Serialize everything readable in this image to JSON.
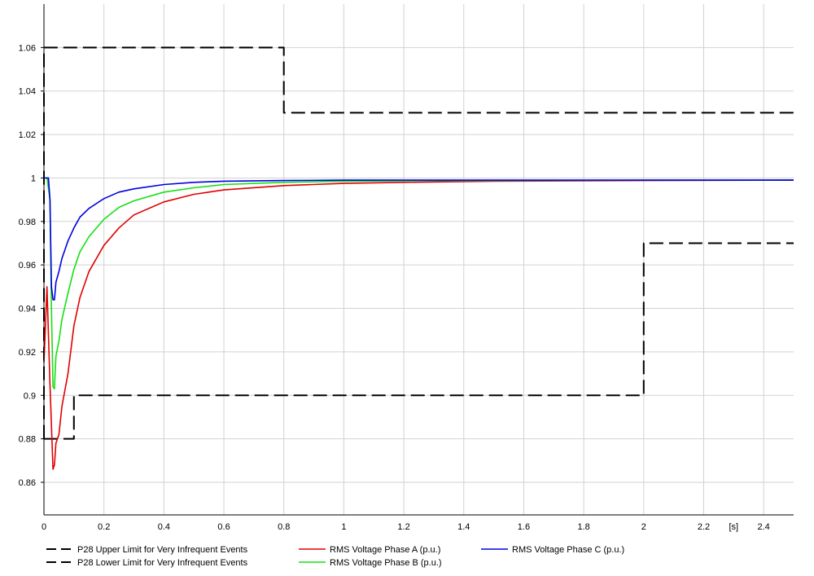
{
  "chart_data": {
    "type": "line",
    "title": "",
    "xlabel": "",
    "ylabel": "",
    "x_unit_label": "[s]",
    "xlim": [
      0,
      2.5
    ],
    "ylim": [
      0.845,
      1.08
    ],
    "grid": true,
    "legend_position": "bottom",
    "xticks": [
      {
        "v": 0,
        "label": "0"
      },
      {
        "v": 0.2,
        "label": "0.2"
      },
      {
        "v": 0.4,
        "label": "0.4"
      },
      {
        "v": 0.6,
        "label": "0.6"
      },
      {
        "v": 0.8,
        "label": "0.8"
      },
      {
        "v": 1,
        "label": "1"
      },
      {
        "v": 1.2,
        "label": "1.2"
      },
      {
        "v": 1.4,
        "label": "1.4"
      },
      {
        "v": 1.6,
        "label": "1.6"
      },
      {
        "v": 1.8,
        "label": "1.8"
      },
      {
        "v": 2,
        "label": "2"
      },
      {
        "v": 2.2,
        "label": "2.2"
      },
      {
        "v": 2.4,
        "label": "2.4"
      }
    ],
    "yticks": [
      {
        "v": 0.86,
        "label": "0.86"
      },
      {
        "v": 0.88,
        "label": "0.88"
      },
      {
        "v": 0.9,
        "label": "0.9"
      },
      {
        "v": 0.92,
        "label": "0.92"
      },
      {
        "v": 0.94,
        "label": "0.94"
      },
      {
        "v": 0.96,
        "label": "0.96"
      },
      {
        "v": 0.98,
        "label": "0.98"
      },
      {
        "v": 1,
        "label": "1"
      },
      {
        "v": 1.02,
        "label": "1.02"
      },
      {
        "v": 1.04,
        "label": "1.04"
      },
      {
        "v": 1.06,
        "label": "1.06"
      }
    ],
    "series": [
      {
        "name": "P28 Upper Limit for Very Infrequent Events",
        "color": "#000000",
        "style": "dashed",
        "x": [
          0,
          0,
          0.8,
          0.8,
          2.5
        ],
        "y": [
          0.88,
          1.06,
          1.06,
          1.03,
          1.03
        ]
      },
      {
        "name": "P28 Lower Limit for Very Infrequent Events",
        "color": "#000000",
        "style": "dashed",
        "x": [
          0,
          0.1,
          0.1,
          2,
          2,
          2.5
        ],
        "y": [
          0.88,
          0.88,
          0.9,
          0.9,
          0.97,
          0.97
        ]
      },
      {
        "name": "RMS Voltage Phase A (p.u.)",
        "color": "#e00000",
        "style": "solid",
        "x": [
          0,
          0.01,
          0.02,
          0.03,
          0.035,
          0.04,
          0.05,
          0.06,
          0.08,
          0.1,
          0.12,
          0.15,
          0.2,
          0.25,
          0.3,
          0.4,
          0.5,
          0.6,
          0.8,
          1.0,
          1.2,
          1.5,
          2.0,
          2.5
        ],
        "y": [
          0.915,
          0.95,
          0.905,
          0.866,
          0.868,
          0.878,
          0.882,
          0.895,
          0.91,
          0.932,
          0.945,
          0.957,
          0.969,
          0.977,
          0.983,
          0.989,
          0.9925,
          0.9945,
          0.9965,
          0.9975,
          0.998,
          0.9985,
          0.9988,
          0.999
        ]
      },
      {
        "name": "RMS Voltage Phase B (p.u.)",
        "color": "#14e014",
        "style": "solid",
        "x": [
          0,
          0.01,
          0.02,
          0.025,
          0.03,
          0.035,
          0.04,
          0.05,
          0.06,
          0.08,
          0.1,
          0.12,
          0.15,
          0.2,
          0.25,
          0.3,
          0.4,
          0.5,
          0.6,
          0.8,
          1.0,
          1.2,
          1.5,
          2.0,
          2.5
        ],
        "y": [
          1.0,
          1.0,
          0.99,
          0.94,
          0.904,
          0.903,
          0.918,
          0.925,
          0.935,
          0.947,
          0.958,
          0.966,
          0.973,
          0.981,
          0.9865,
          0.9895,
          0.9935,
          0.9955,
          0.997,
          0.998,
          0.9985,
          0.9987,
          0.9988,
          0.999,
          0.999
        ]
      },
      {
        "name": "RMS Voltage Phase C (p.u.)",
        "color": "#0000e0",
        "style": "solid",
        "x": [
          0,
          0.015,
          0.02,
          0.025,
          0.03,
          0.035,
          0.04,
          0.05,
          0.06,
          0.08,
          0.1,
          0.12,
          0.15,
          0.2,
          0.25,
          0.3,
          0.4,
          0.5,
          0.6,
          0.8,
          1.0,
          1.5,
          2.0,
          2.5
        ],
        "y": [
          1.0,
          1.0,
          0.99,
          0.95,
          0.944,
          0.944,
          0.952,
          0.957,
          0.963,
          0.971,
          0.977,
          0.982,
          0.986,
          0.9905,
          0.9935,
          0.995,
          0.997,
          0.998,
          0.9985,
          0.9988,
          0.999,
          0.999,
          0.999,
          0.999
        ]
      }
    ]
  }
}
